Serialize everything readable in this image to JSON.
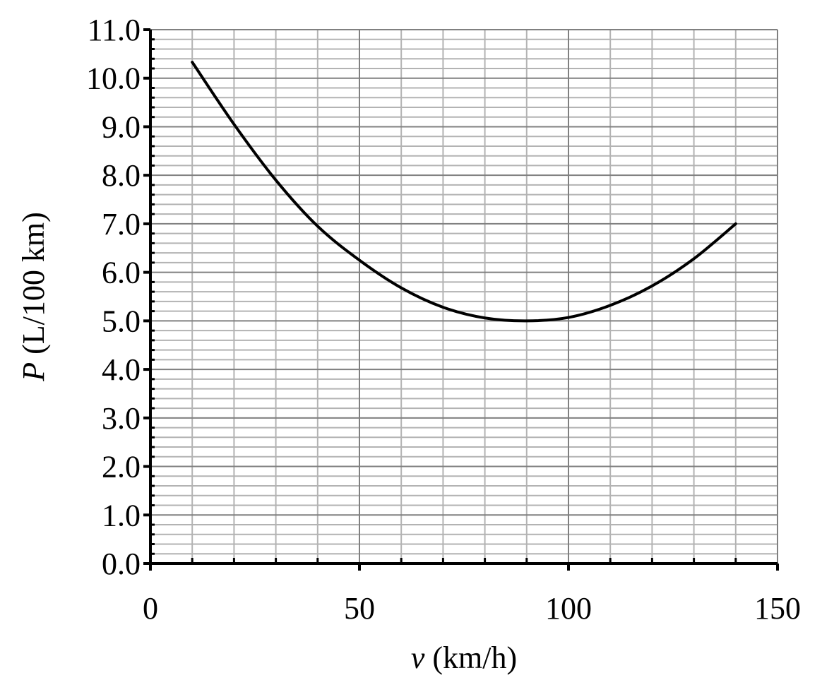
{
  "chart_data": {
    "type": "line",
    "title": "",
    "xlabel": {
      "symbol": "v",
      "unit": " (km/h)"
    },
    "ylabel": {
      "symbol": "P",
      "unit": " (L/100 km)"
    },
    "xlim": [
      0,
      150
    ],
    "ylim": [
      0,
      11
    ],
    "x_ticks": [
      "0",
      "50",
      "100",
      "150"
    ],
    "y_ticks": [
      "0.0",
      "1.0",
      "2.0",
      "3.0",
      "4.0",
      "5.0",
      "6.0",
      "7.0",
      "8.0",
      "9.0",
      "10.0",
      "11.0"
    ],
    "grid": true,
    "legend": "none",
    "line_color": "#000000",
    "major_grid_color": "#808080",
    "minor_grid_color": "#b3b3b3",
    "series": [
      {
        "x": [
          10,
          20,
          30,
          40,
          50,
          60,
          70,
          80,
          90,
          100,
          110,
          120,
          130,
          140
        ],
        "y": [
          10.33,
          9.05,
          7.9,
          6.95,
          6.25,
          5.68,
          5.28,
          5.06,
          5.0,
          5.07,
          5.32,
          5.72,
          6.28,
          7.0
        ]
      }
    ]
  }
}
